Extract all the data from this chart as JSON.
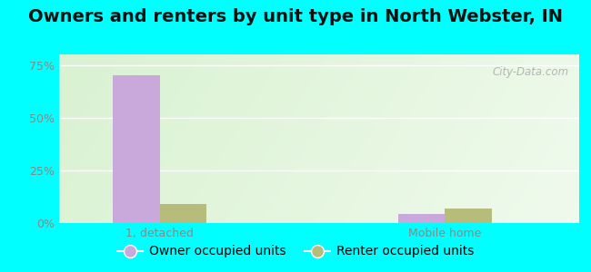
{
  "title": "Owners and renters by unit type in North Webster, IN",
  "categories": [
    "1, detached",
    "Mobile home"
  ],
  "owner_values": [
    70.0,
    4.5
  ],
  "renter_values": [
    9.0,
    7.0
  ],
  "owner_color": "#c9a8dc",
  "renter_color": "#b8bc7a",
  "ylim": [
    0,
    80
  ],
  "yticks": [
    0,
    25,
    50,
    75
  ],
  "ytick_labels": [
    "0%",
    "25%",
    "50%",
    "75%"
  ],
  "bar_width": 0.28,
  "x_positions": [
    0.5,
    2.2
  ],
  "legend_owner": "Owner occupied units",
  "legend_renter": "Renter occupied units",
  "outer_bg": "#00ffff",
  "plot_bg": "#f2f8ee",
  "watermark": "City-Data.com",
  "title_fontsize": 14,
  "axis_fontsize": 9,
  "legend_fontsize": 10,
  "grid_color": "#ffffff",
  "tick_color": "#888888",
  "label_color": "#888888"
}
